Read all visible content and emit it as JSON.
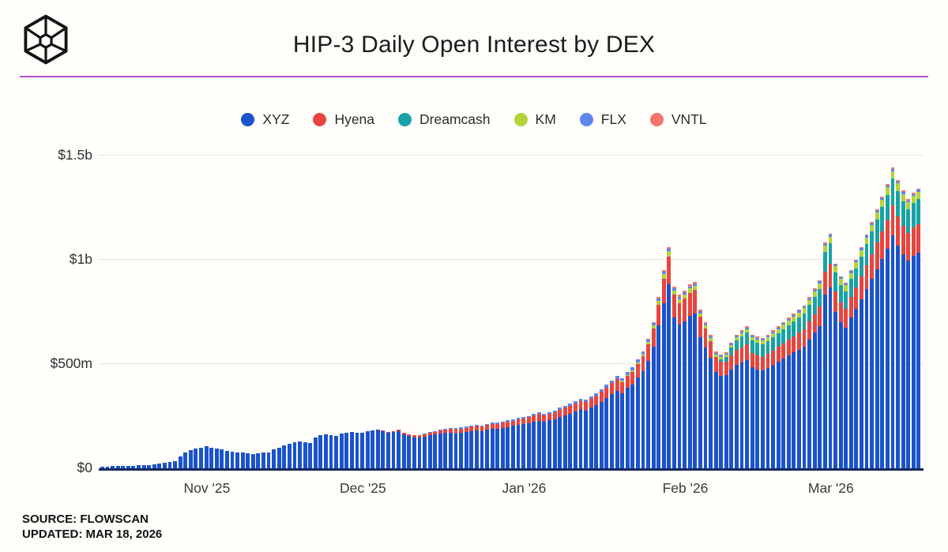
{
  "header": {
    "title": "HIP-3 Daily Open Interest by DEX",
    "logo_icon": "cube-wireframe-logo",
    "divider_color": "#b44fd6"
  },
  "source": {
    "line1": "SOURCE: FLOWSCAN",
    "line2": "UPDATED: MAR 18, 2026"
  },
  "chart_data": {
    "type": "bar",
    "stacked": true,
    "title": "HIP-3 Daily Open Interest by DEX",
    "unit": "millions USD",
    "x_start": "Oct 12 '25",
    "x_end": "Mar 18 '26",
    "n_bars": 158,
    "ylim": [
      0,
      1500
    ],
    "grid": true,
    "legend_position": "top-center",
    "axis_color": "#16295c",
    "yticks": [
      {
        "value": 0,
        "label": "$0"
      },
      {
        "value": 500,
        "label": "$500m"
      },
      {
        "value": 1000,
        "label": "$1b"
      },
      {
        "value": 1500,
        "label": "$1.5b"
      }
    ],
    "xticks": [
      {
        "index": 20,
        "label": "Nov '25"
      },
      {
        "index": 50,
        "label": "Dec '25"
      },
      {
        "index": 81,
        "label": "Jan '26"
      },
      {
        "index": 112,
        "label": "Feb '26"
      },
      {
        "index": 140,
        "label": "Mar '26"
      }
    ],
    "series": [
      {
        "name": "XYZ",
        "color": "#1a53cc",
        "start_offset_days": 0,
        "values": [
          8,
          9,
          10,
          11,
          12,
          12,
          13,
          14,
          15,
          16,
          18,
          22,
          26,
          30,
          36,
          55,
          75,
          88,
          95,
          100,
          105,
          100,
          96,
          90,
          84,
          80,
          76,
          74,
          72,
          70,
          72,
          74,
          76,
          90,
          100,
          110,
          118,
          124,
          127,
          124,
          120,
          148,
          158,
          164,
          160,
          156,
          166,
          170,
          174,
          170,
          172,
          178,
          182,
          186,
          177,
          171,
          174,
          177,
          162,
          154,
          148,
          149,
          152,
          159,
          162,
          166,
          169,
          172,
          168,
          171,
          174,
          178,
          182,
          178,
          185,
          190,
          188,
          193,
          198,
          203,
          208,
          211,
          216,
          223,
          229,
          223,
          230,
          236,
          246,
          254,
          262,
          272,
          283,
          278,
          291,
          303,
          320,
          337,
          355,
          372,
          360,
          385,
          403,
          435,
          466,
          516,
          583,
          684,
          792,
          884,
          722,
          688,
          706,
          731,
          742,
          630,
          580,
          530,
          463,
          445,
          446,
          472,
          496,
          508,
          520,
          485,
          475,
          468,
          480,
          495,
          510,
          525,
          540,
          555,
          570,
          585,
          617,
          650,
          683,
          833,
          868,
          750,
          700,
          676,
          724,
          764,
          812,
          860,
          908,
          956,
          1004,
          1052,
          1116,
          1068,
          1028,
          996,
          1020,
          1036
        ]
      },
      {
        "name": "Hyena",
        "color": "#e8453e",
        "start_offset_days": 54,
        "values": [
          4,
          5,
          6,
          7,
          8,
          9,
          10,
          10,
          11,
          13,
          14,
          16,
          17,
          18,
          19,
          20,
          21,
          22,
          22,
          22,
          23,
          24,
          24,
          25,
          25,
          26,
          27,
          28,
          29,
          30,
          31,
          31,
          32,
          33,
          35,
          36,
          38,
          39,
          41,
          41,
          43,
          45,
          47,
          50,
          53,
          56,
          54,
          58,
          61,
          66,
          71,
          79,
          89,
          102,
          118,
          132,
          110,
          105,
          107,
          111,
          113,
          96,
          89,
          81,
          71,
          66,
          64,
          68,
          71,
          72,
          74,
          69,
          68,
          67,
          68,
          70,
          72,
          74,
          76,
          78,
          80,
          82,
          86,
          90,
          94,
          110,
          115,
          100,
          94,
          91,
          97,
          102,
          108,
          114,
          120,
          126,
          132,
          138,
          146,
          140,
          135,
          131,
          134,
          136
        ]
      },
      {
        "name": "Dreamcash",
        "color": "#17a3a8",
        "start_offset_days": 119,
        "values": [
          12,
          24,
          38,
          48,
          54,
          58,
          58,
          59,
          61,
          63,
          65,
          67,
          69,
          71,
          73,
          75,
          77,
          80,
          82,
          84,
          95,
          98,
          90,
          86,
          83,
          87,
          92,
          97,
          102,
          107,
          112,
          117,
          122,
          128,
          123,
          119,
          115,
          118,
          120
        ]
      },
      {
        "name": "KM",
        "color": "#b3d339",
        "start_offset_days": 100,
        "values": [
          5,
          6,
          7,
          8,
          10,
          12,
          14,
          18,
          22,
          24,
          20,
          19,
          19,
          20,
          21,
          17,
          15,
          14,
          12,
          11,
          10,
          12,
          14,
          15,
          16,
          16,
          16,
          16,
          17,
          18,
          19,
          20,
          21,
          22,
          23,
          24,
          25,
          26,
          27,
          29,
          30,
          28,
          28,
          28,
          29,
          29,
          30,
          31,
          32,
          33,
          34,
          35,
          36,
          35,
          34,
          34,
          34,
          34
        ]
      },
      {
        "name": "FLX",
        "color": "#5d87ee",
        "start_offset_days": 61,
        "values": [
          2,
          3,
          3,
          4,
          4,
          4,
          5,
          5,
          5,
          5,
          5,
          6,
          6,
          6,
          6,
          6,
          6,
          7,
          7,
          7,
          7,
          7,
          7,
          8,
          8,
          8,
          9,
          9,
          10,
          10,
          11,
          11,
          11,
          12,
          12,
          13,
          13,
          14,
          14,
          13,
          13,
          13,
          13,
          10,
          10,
          10,
          11,
          12,
          13,
          11,
          11,
          11,
          11,
          11,
          10,
          9,
          9,
          8,
          7,
          7,
          7,
          7,
          7,
          8,
          8,
          8,
          8,
          8,
          8,
          8,
          8,
          8,
          8,
          8,
          8,
          8,
          8,
          8,
          9,
          9,
          8,
          8,
          8,
          9,
          9,
          9,
          9,
          9,
          9,
          9,
          9,
          10,
          10,
          10,
          10,
          10,
          10
        ]
      },
      {
        "name": "VNTL",
        "color": "#f4756b",
        "start_offset_days": 104,
        "values": [
          5,
          5,
          6,
          7,
          8,
          9,
          9,
          9,
          9,
          9,
          9,
          9,
          9,
          8,
          8,
          5,
          5,
          5,
          6,
          6,
          6,
          6,
          6,
          6,
          6,
          6,
          6,
          6,
          6,
          6,
          6,
          6,
          6,
          6,
          6,
          6,
          6,
          6,
          6,
          6,
          6,
          6,
          6,
          6,
          6,
          6,
          6,
          6,
          6,
          6,
          6,
          6,
          6,
          6
        ]
      }
    ]
  }
}
